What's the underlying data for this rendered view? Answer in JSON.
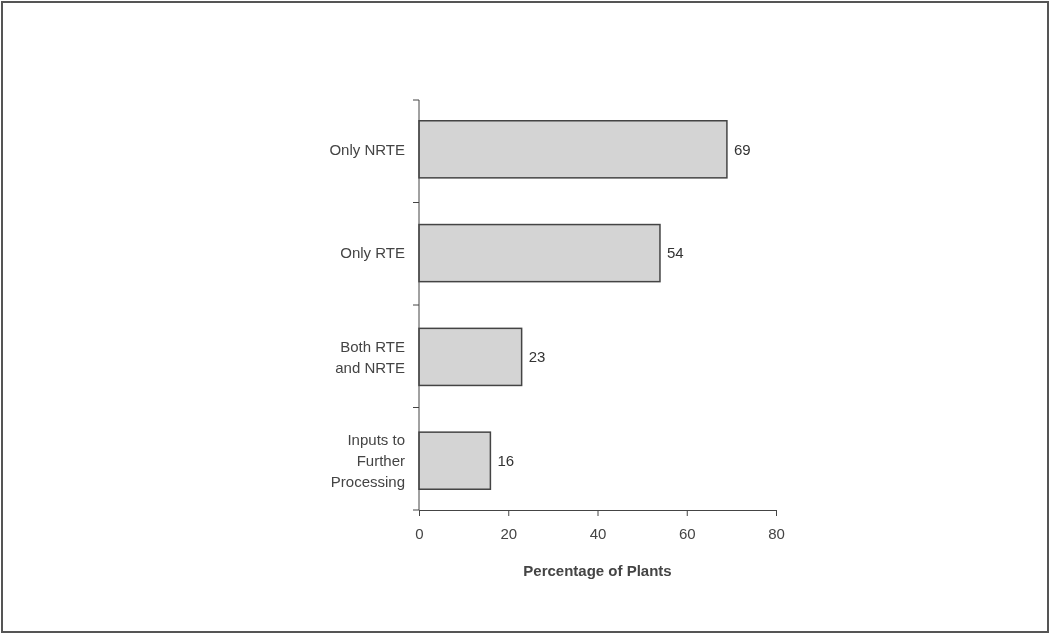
{
  "chart_data": {
    "type": "bar",
    "orientation": "horizontal",
    "categories": [
      "Only NRTE",
      "Only RTE",
      "Both RTE and NRTE",
      "Inputs to Further Processing"
    ],
    "values": [
      69,
      54,
      23,
      16
    ],
    "color": "#d4d4d4",
    "xlabel": "Percentage of Plants",
    "xlim": [
      0,
      80
    ],
    "xticks": [
      0,
      20,
      40,
      60,
      80
    ],
    "data_labels": true,
    "grid": false
  }
}
